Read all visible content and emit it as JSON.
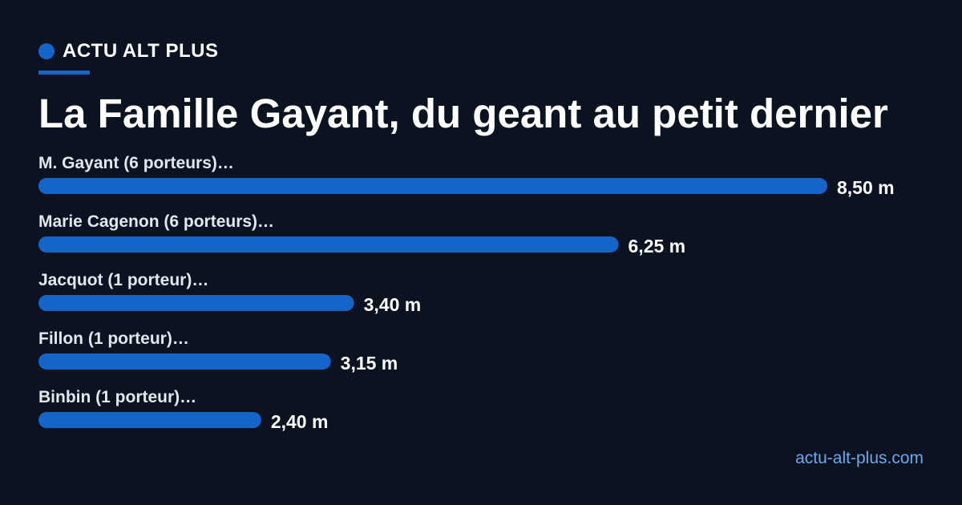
{
  "brand": {
    "name": "ACTU ALT PLUS",
    "accent_color": "#1565c8"
  },
  "page_title": "La Famille Gayant, du geant au petit dernier",
  "footer": {
    "url": "actu-alt-plus.com"
  },
  "chart_data": {
    "type": "bar",
    "orientation": "horizontal",
    "categories": [
      "M. Gayant (6 porteurs)…",
      "Marie Cagenon (6 porteurs)…",
      "Jacquot (1 porteur)…",
      "Fillon (1 porteur)…",
      "Binbin (1 porteur)…"
    ],
    "values": [
      8.5,
      6.25,
      3.4,
      3.15,
      2.4
    ],
    "value_labels": [
      "8,50 m",
      "6,25 m",
      "3,40 m",
      "3,15 m",
      "2,40 m"
    ],
    "unit": "m",
    "xlim": [
      0,
      8.5
    ],
    "bar_color": "#1565c8",
    "grid": false,
    "legend": "none"
  }
}
